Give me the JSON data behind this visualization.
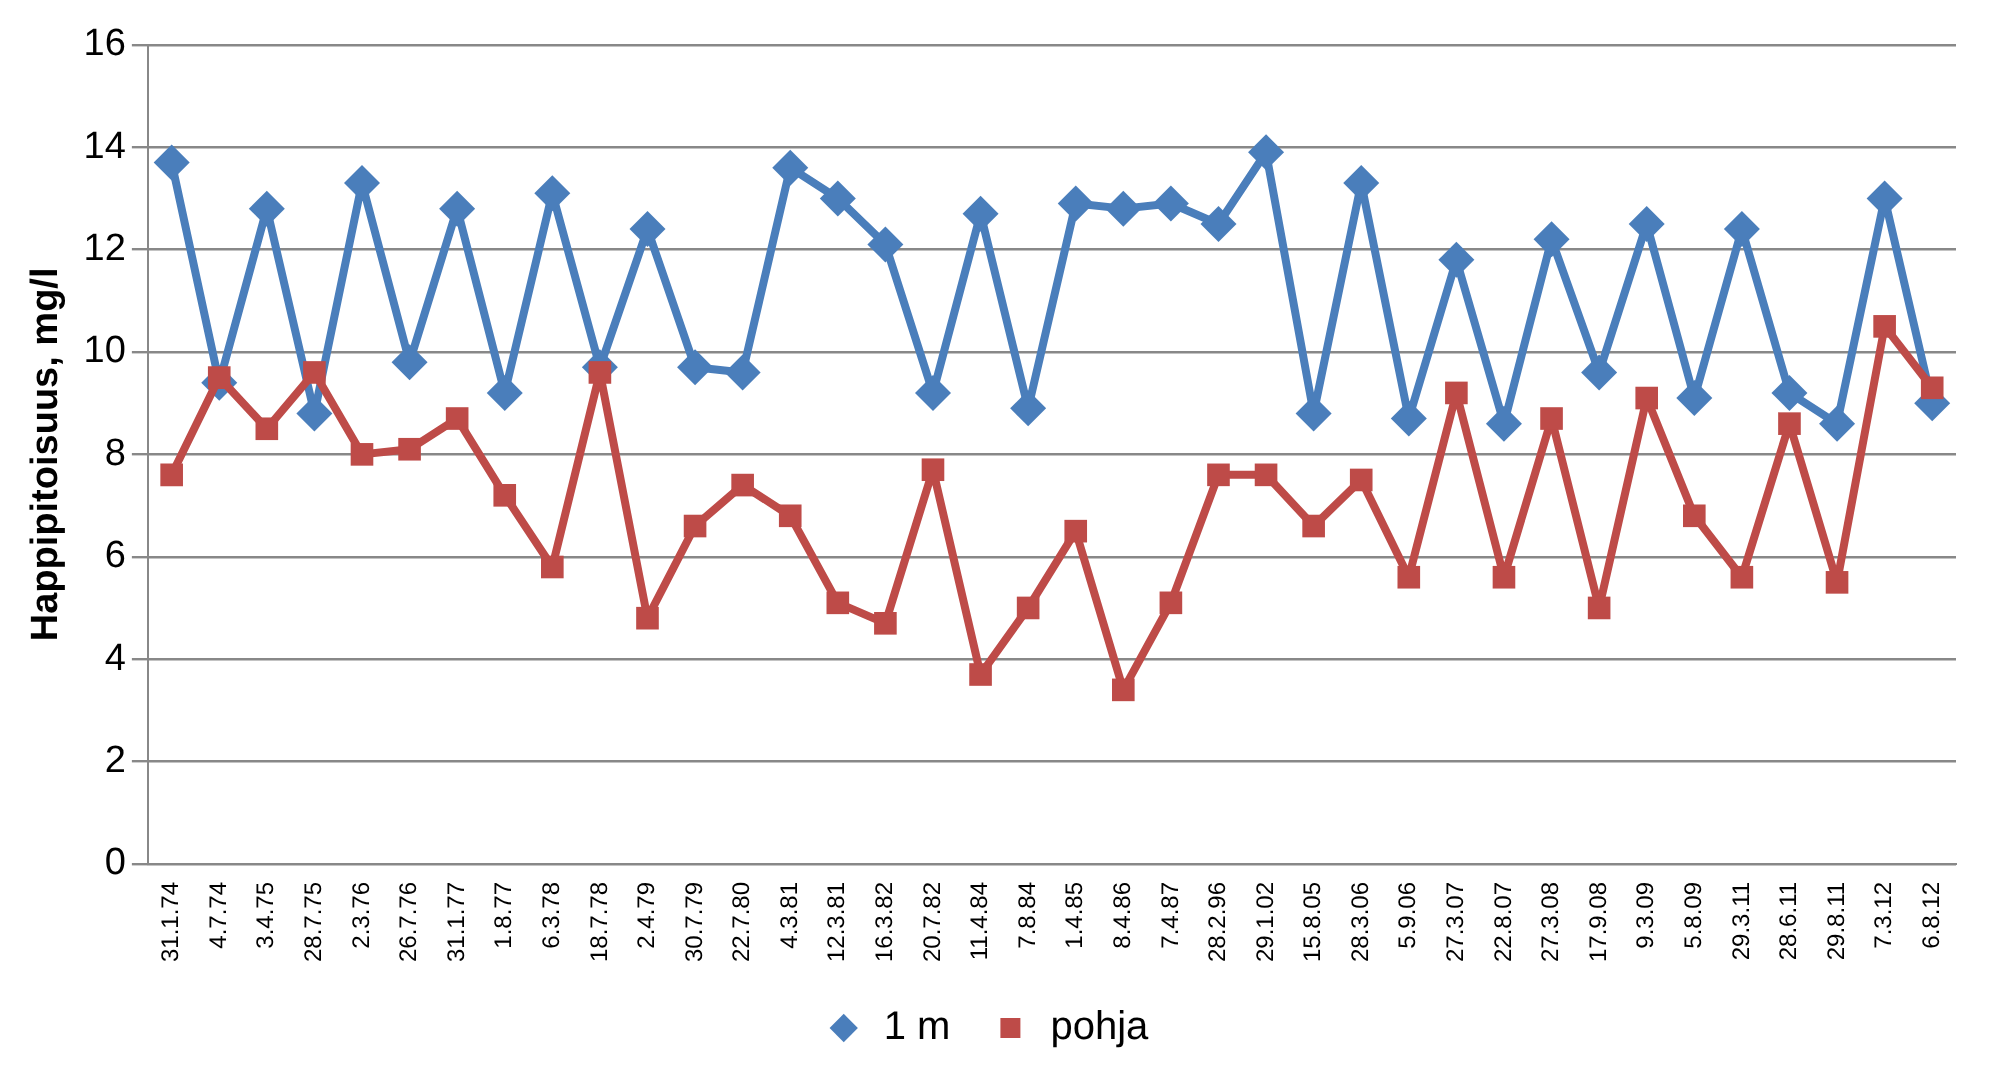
{
  "chart_data": {
    "type": "line",
    "ylabel": "Happipitoisuus, mg/l",
    "categories": [
      "31.1.74",
      "4.7.74",
      "3.4.75",
      "28.7.75",
      "2.3.76",
      "26.7.76",
      "31.1.77",
      "1.8.77",
      "6.3.78",
      "18.7.78",
      "2.4.79",
      "30.7.79",
      "22.7.80",
      "4.3.81",
      "12.3.81",
      "16.3.82",
      "20.7.82",
      "11.4.84",
      "7.8.84",
      "1.4.85",
      "8.4.86",
      "7.4.87",
      "28.2.96",
      "29.1.02",
      "15.8.05",
      "28.3.06",
      "5.9.06",
      "27.3.07",
      "22.8.07",
      "27.3.08",
      "17.9.08",
      "9.3.09",
      "5.8.09",
      "29.3.11",
      "28.6.11",
      "29.8.11",
      "7.3.12",
      "6.8.12"
    ],
    "series": [
      {
        "name": "1 m",
        "color": "#4a7ebb",
        "marker": "diamond",
        "values": [
          13.7,
          9.4,
          12.8,
          8.8,
          13.3,
          9.8,
          12.8,
          9.2,
          13.1,
          9.7,
          12.4,
          9.7,
          9.6,
          13.6,
          13.0,
          12.1,
          9.2,
          12.7,
          8.9,
          12.9,
          12.8,
          12.9,
          12.5,
          13.9,
          8.8,
          13.3,
          8.7,
          11.8,
          8.6,
          12.2,
          9.6,
          12.5,
          9.1,
          12.4,
          9.2,
          8.6,
          13.0,
          9.0
        ]
      },
      {
        "name": "pohja",
        "color": "#be4b48",
        "marker": "square",
        "values": [
          7.6,
          9.5,
          8.5,
          9.6,
          8.0,
          8.1,
          8.7,
          7.2,
          5.8,
          9.6,
          4.8,
          6.6,
          7.4,
          6.8,
          5.1,
          4.7,
          7.7,
          3.7,
          5.0,
          6.5,
          3.4,
          5.1,
          7.6,
          7.6,
          6.6,
          7.5,
          5.6,
          9.2,
          5.6,
          8.7,
          5.0,
          9.1,
          6.8,
          5.6,
          8.6,
          5.5,
          10.5,
          9.3
        ]
      }
    ],
    "ylim": [
      0,
      16
    ],
    "yticks": [
      0,
      2,
      4,
      6,
      8,
      10,
      12,
      14,
      16
    ],
    "grid": "y",
    "legend": "bottom",
    "line_style": "solid"
  }
}
